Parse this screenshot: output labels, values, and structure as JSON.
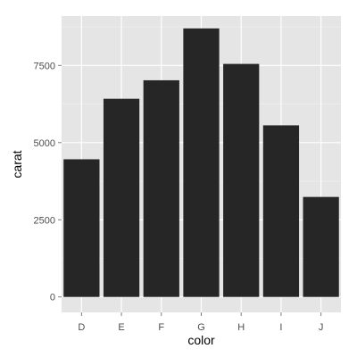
{
  "chart_data": {
    "type": "bar",
    "categories": [
      "D",
      "E",
      "F",
      "G",
      "H",
      "I",
      "J"
    ],
    "values": [
      4460,
      6420,
      7020,
      8700,
      7550,
      5560,
      3240
    ],
    "xlabel": "color",
    "ylabel": "carat",
    "ylim": [
      -500,
      9100
    ],
    "yticks": [
      0,
      2500,
      5000,
      7500
    ],
    "ytick_labels": [
      "0",
      "2500",
      "5000",
      "7500"
    ],
    "grid": true,
    "colors": {
      "panel": "#e5e5e5",
      "grid_major": "#ffffff",
      "grid_minor": "#f2f2f2",
      "bar": "#262626",
      "tick": "#7f7f7f"
    }
  }
}
